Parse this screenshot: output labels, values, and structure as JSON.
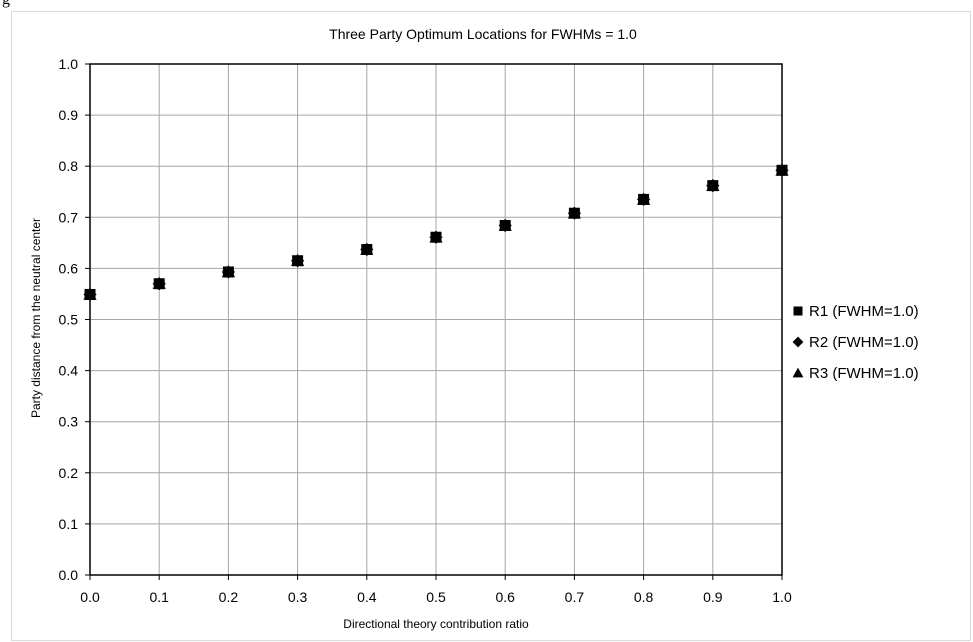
{
  "frame_caption": "g",
  "chart_data": {
    "type": "scatter",
    "title": "Three Party Optimum Locations for FWHMs = 1.0",
    "xlabel": "Directional theory contribution ratio",
    "ylabel": "Party distance from the neutral center",
    "xlim": [
      0.0,
      1.0
    ],
    "ylim": [
      0.0,
      1.0
    ],
    "x_ticks": [
      "0.0",
      "0.1",
      "0.2",
      "0.3",
      "0.4",
      "0.5",
      "0.6",
      "0.7",
      "0.8",
      "0.9",
      "1.0"
    ],
    "y_ticks": [
      "0.0",
      "0.1",
      "0.2",
      "0.3",
      "0.4",
      "0.5",
      "0.6",
      "0.7",
      "0.8",
      "0.9",
      "1.0"
    ],
    "grid": true,
    "legend_position": "right",
    "series": [
      {
        "name": "R1 (FWHM=1.0)",
        "marker": "square",
        "color": "#000000",
        "x": [
          0.0,
          0.1,
          0.2,
          0.3,
          0.4,
          0.5,
          0.6,
          0.7,
          0.8,
          0.9,
          1.0
        ],
        "y": [
          0.549,
          0.57,
          0.593,
          0.615,
          0.637,
          0.661,
          0.684,
          0.708,
          0.735,
          0.762,
          0.792
        ]
      },
      {
        "name": "R2 (FWHM=1.0)",
        "marker": "diamond",
        "color": "#000000",
        "x": [
          0.0,
          0.1,
          0.2,
          0.3,
          0.4,
          0.5,
          0.6,
          0.7,
          0.8,
          0.9,
          1.0
        ],
        "y": [
          0.549,
          0.57,
          0.593,
          0.615,
          0.637,
          0.661,
          0.684,
          0.708,
          0.735,
          0.762,
          0.792
        ]
      },
      {
        "name": "R3 (FWHM=1.0)",
        "marker": "triangle",
        "color": "#000000",
        "x": [
          0.0,
          0.1,
          0.2,
          0.3,
          0.4,
          0.5,
          0.6,
          0.7,
          0.8,
          0.9,
          1.0
        ],
        "y": [
          0.549,
          0.57,
          0.593,
          0.615,
          0.637,
          0.661,
          0.684,
          0.708,
          0.735,
          0.762,
          0.792
        ]
      }
    ]
  }
}
